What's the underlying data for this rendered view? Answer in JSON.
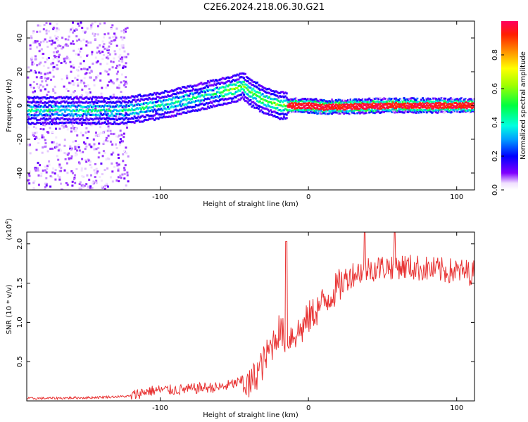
{
  "page": {
    "title": "C2E6.2024.218.06.30.G21"
  },
  "colors": {
    "snr_line": "#e83232",
    "axis": "#000000",
    "background": "#ffffff"
  },
  "chart_data": [
    {
      "type": "heatmap",
      "title": "C2E6.2024.218.06.30.G21",
      "xlabel": "Height of straight line (km)",
      "ylabel": "Frequency (Hz)",
      "xlim": [
        -190,
        112
      ],
      "ylim": [
        -50,
        50
      ],
      "x_ticks": [
        -100,
        0,
        100
      ],
      "y_ticks": [
        -40,
        -20,
        0,
        20,
        40
      ],
      "grid": false,
      "colorbar": {
        "label": "Normalized spectral amplitude",
        "range": [
          0,
          1
        ],
        "ticks": [
          0.0,
          0.2,
          0.4,
          0.6,
          0.8
        ],
        "colormap": "rainbow"
      },
      "ridge": {
        "description_points_x": [
          -190,
          -150,
          -125,
          -100,
          -80,
          -60,
          -50,
          -45,
          -40,
          -30,
          -20,
          -10,
          0,
          10,
          50,
          112
        ],
        "frequency_hz": [
          -3,
          -3,
          -3,
          0,
          4,
          8,
          10,
          12,
          8,
          3,
          0,
          0,
          0,
          -1,
          0,
          0
        ]
      }
    },
    {
      "type": "line",
      "xlabel": "Height of straight line (km)",
      "ylabel": "SNR (10 * v/v)",
      "y_multiplier": "(x10^4)",
      "xlim": [
        -190,
        112
      ],
      "ylim": [
        0,
        2.15
      ],
      "x_ticks": [
        -100,
        0,
        100
      ],
      "y_ticks": [
        0.5,
        1.0,
        1.5,
        2.0
      ],
      "grid": false,
      "series": [
        {
          "x": [
            -190,
            -150,
            -120,
            -110,
            -100,
            -90,
            -80,
            -70,
            -60,
            -50,
            -44,
            -40,
            -35,
            -30,
            -25,
            -20,
            -15,
            -10,
            -5,
            0,
            5,
            10,
            15,
            20,
            25,
            30,
            40,
            50,
            60,
            70,
            80,
            90,
            100,
            112
          ],
          "values": [
            0.03,
            0.04,
            0.06,
            0.12,
            0.14,
            0.14,
            0.15,
            0.17,
            0.17,
            0.22,
            0.25,
            0.18,
            0.35,
            0.5,
            0.7,
            0.9,
            0.8,
            0.85,
            0.9,
            1.05,
            1.15,
            1.25,
            1.35,
            1.45,
            1.55,
            1.62,
            1.68,
            1.7,
            1.72,
            1.7,
            1.68,
            1.66,
            1.65,
            1.63
          ]
        }
      ]
    }
  ]
}
